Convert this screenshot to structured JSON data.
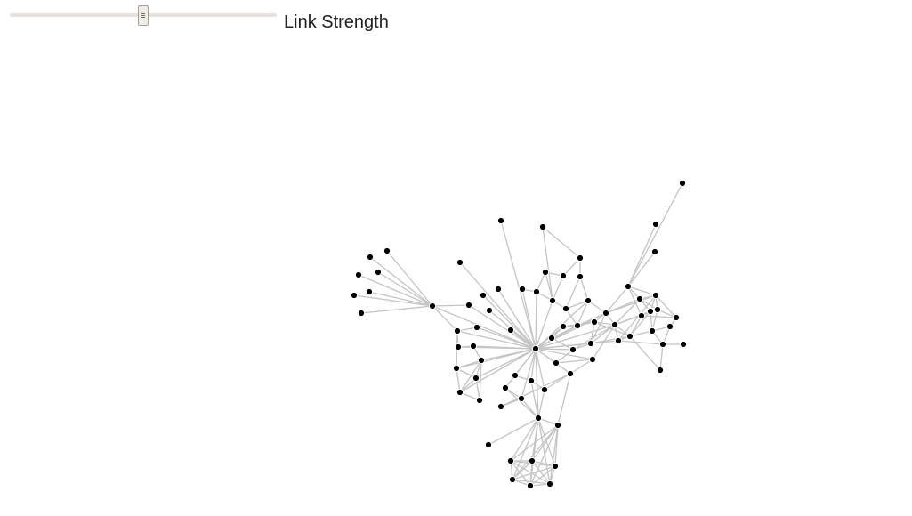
{
  "controls": {
    "slider_label": "Link Strength",
    "link_strength": 0.5
  },
  "graph": {
    "colors": {
      "link": "#c4c4c4",
      "node": "#000000",
      "track": "#e6e1dd"
    },
    "node_count": 79
  }
}
